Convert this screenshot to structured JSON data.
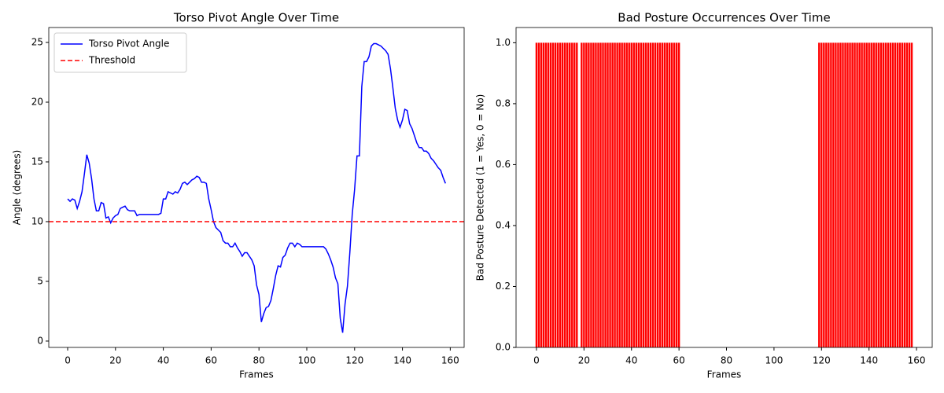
{
  "chart_data": [
    {
      "type": "line",
      "title": "Torso Pivot Angle Over Time",
      "xlabel": "Frames",
      "ylabel": "Angle (degrees)",
      "x": [
        0,
        1,
        2,
        3,
        4,
        5,
        6,
        7,
        8,
        9,
        10,
        11,
        12,
        13,
        14,
        15,
        16,
        17,
        18,
        19,
        20,
        21,
        22,
        23,
        24,
        25,
        26,
        27,
        28,
        29,
        30,
        31,
        32,
        33,
        34,
        35,
        36,
        37,
        38,
        39,
        40,
        41,
        42,
        43,
        44,
        45,
        46,
        47,
        48,
        49,
        50,
        51,
        52,
        53,
        54,
        55,
        56,
        57,
        58,
        59,
        60,
        61,
        62,
        63,
        64,
        65,
        66,
        67,
        68,
        69,
        70,
        71,
        72,
        73,
        74,
        75,
        76,
        77,
        78,
        79,
        80,
        81,
        82,
        83,
        84,
        85,
        86,
        87,
        88,
        89,
        90,
        91,
        92,
        93,
        94,
        95,
        96,
        97,
        98,
        99,
        100,
        101,
        102,
        103,
        104,
        105,
        106,
        107,
        108,
        109,
        110,
        111,
        112,
        113,
        114,
        115,
        116,
        117,
        118,
        119,
        120,
        121,
        122,
        123,
        124,
        125,
        126,
        127,
        128,
        129,
        130,
        131,
        132,
        133,
        134,
        135,
        136,
        137,
        138,
        139,
        140,
        141,
        142,
        143,
        144,
        145,
        146,
        147,
        148,
        149,
        150,
        151,
        152,
        153,
        154,
        155,
        156,
        157,
        158
      ],
      "series": [
        {
          "name": "Torso Pivot Angle",
          "color": "#0000ff",
          "values": [
            11.9,
            11.7,
            11.9,
            11.8,
            11.1,
            11.7,
            12.5,
            14.0,
            15.6,
            14.9,
            13.6,
            11.9,
            10.9,
            10.9,
            11.6,
            11.5,
            10.3,
            10.4,
            9.9,
            10.3,
            10.5,
            10.6,
            11.1,
            11.2,
            11.3,
            11.0,
            10.9,
            10.9,
            10.9,
            10.5,
            10.6,
            10.6,
            10.6,
            10.6,
            10.6,
            10.6,
            10.6,
            10.6,
            10.6,
            10.7,
            11.9,
            11.9,
            12.5,
            12.4,
            12.3,
            12.5,
            12.4,
            12.7,
            13.2,
            13.3,
            13.1,
            13.3,
            13.5,
            13.6,
            13.8,
            13.7,
            13.3,
            13.3,
            13.2,
            11.9,
            11.0,
            10.0,
            9.5,
            9.3,
            9.1,
            8.4,
            8.2,
            8.2,
            7.9,
            7.9,
            8.2,
            7.8,
            7.5,
            7.1,
            7.4,
            7.4,
            7.1,
            6.8,
            6.3,
            4.7,
            3.9,
            1.6,
            2.3,
            2.8,
            2.9,
            3.4,
            4.4,
            5.5,
            6.3,
            6.2,
            7.0,
            7.2,
            7.8,
            8.2,
            8.2,
            7.9,
            8.2,
            8.1,
            7.9,
            7.9,
            7.9,
            7.9,
            7.9,
            7.9,
            7.9,
            7.9,
            7.9,
            7.9,
            7.7,
            7.3,
            6.8,
            6.2,
            5.3,
            4.8,
            1.9,
            0.7,
            3.1,
            4.6,
            7.4,
            10.6,
            12.7,
            15.5,
            15.5,
            21.3,
            23.4,
            23.4,
            23.8,
            24.7,
            24.9,
            24.9,
            24.8,
            24.7,
            24.5,
            24.3,
            24.0,
            22.8,
            21.2,
            19.5,
            18.5,
            17.9,
            18.5,
            19.4,
            19.3,
            18.2,
            17.8,
            17.2,
            16.6,
            16.2,
            16.2,
            15.9,
            15.9,
            15.7,
            15.3,
            15.1,
            14.8,
            14.5,
            14.3,
            13.7,
            13.2
          ]
        }
      ],
      "threshold": {
        "name": "Threshold",
        "value": 10,
        "color": "#ff0000"
      },
      "xlim": [
        -7.9,
        165.8
      ],
      "xticks": [
        0,
        20,
        40,
        60,
        80,
        100,
        120,
        140,
        160
      ],
      "ylim": [
        -0.53,
        26.25
      ],
      "yticks": [
        0,
        5,
        10,
        15,
        20,
        25
      ],
      "legend": "upper left"
    },
    {
      "type": "bar",
      "title": "Bad Posture Occurrences Over Time",
      "xlabel": "Frames",
      "ylabel": "Bad Posture Detected (1 = Yes, 0 = No)",
      "color": "#ff0000",
      "x": [
        0,
        1,
        2,
        3,
        4,
        5,
        6,
        7,
        8,
        9,
        10,
        11,
        12,
        13,
        14,
        15,
        16,
        17,
        18,
        19,
        20,
        21,
        22,
        23,
        24,
        25,
        26,
        27,
        28,
        29,
        30,
        31,
        32,
        33,
        34,
        35,
        36,
        37,
        38,
        39,
        40,
        41,
        42,
        43,
        44,
        45,
        46,
        47,
        48,
        49,
        50,
        51,
        52,
        53,
        54,
        55,
        56,
        57,
        58,
        59,
        60,
        61,
        62,
        63,
        64,
        65,
        66,
        67,
        68,
        69,
        70,
        71,
        72,
        73,
        74,
        75,
        76,
        77,
        78,
        79,
        80,
        81,
        82,
        83,
        84,
        85,
        86,
        87,
        88,
        89,
        90,
        91,
        92,
        93,
        94,
        95,
        96,
        97,
        98,
        99,
        100,
        101,
        102,
        103,
        104,
        105,
        106,
        107,
        108,
        109,
        110,
        111,
        112,
        113,
        114,
        115,
        116,
        117,
        118,
        119,
        120,
        121,
        122,
        123,
        124,
        125,
        126,
        127,
        128,
        129,
        130,
        131,
        132,
        133,
        134,
        135,
        136,
        137,
        138,
        139,
        140,
        141,
        142,
        143,
        144,
        145,
        146,
        147,
        148,
        149,
        150,
        151,
        152,
        153,
        154,
        155,
        156,
        157,
        158
      ],
      "values": [
        1,
        1,
        1,
        1,
        1,
        1,
        1,
        1,
        1,
        1,
        1,
        1,
        1,
        1,
        1,
        1,
        1,
        1,
        0,
        1,
        1,
        1,
        1,
        1,
        1,
        1,
        1,
        1,
        1,
        1,
        1,
        1,
        1,
        1,
        1,
        1,
        1,
        1,
        1,
        1,
        1,
        1,
        1,
        1,
        1,
        1,
        1,
        1,
        1,
        1,
        1,
        1,
        1,
        1,
        1,
        1,
        1,
        1,
        1,
        1,
        1,
        0,
        0,
        0,
        0,
        0,
        0,
        0,
        0,
        0,
        0,
        0,
        0,
        0,
        0,
        0,
        0,
        0,
        0,
        0,
        0,
        0,
        0,
        0,
        0,
        0,
        0,
        0,
        0,
        0,
        0,
        0,
        0,
        0,
        0,
        0,
        0,
        0,
        0,
        0,
        0,
        0,
        0,
        0,
        0,
        0,
        0,
        0,
        0,
        0,
        0,
        0,
        0,
        0,
        0,
        0,
        0,
        0,
        0,
        1,
        1,
        1,
        1,
        1,
        1,
        1,
        1,
        1,
        1,
        1,
        1,
        1,
        1,
        1,
        1,
        1,
        1,
        1,
        1,
        1,
        1,
        1,
        1,
        1,
        1,
        1,
        1,
        1,
        1,
        1,
        1,
        1,
        1,
        1,
        1,
        1,
        1,
        1,
        1
      ],
      "xlim": [
        -8.6,
        166.6
      ],
      "xticks": [
        0,
        20,
        40,
        60,
        80,
        100,
        120,
        140,
        160
      ],
      "ylim": [
        0,
        1.05
      ],
      "yticks": [
        {
          "value": 0,
          "label": "0.0"
        },
        0.2,
        0.4,
        0.6,
        0.8,
        {
          "value": 1,
          "label": "1.0"
        }
      ]
    }
  ]
}
